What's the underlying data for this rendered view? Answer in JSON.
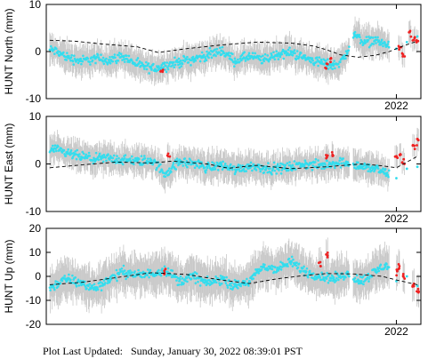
{
  "colors": {
    "series_main": "#33ddee",
    "series_recent": "#ee2222",
    "errorbar": "#c8c8c8",
    "model": "#000000",
    "frame": "#000000"
  },
  "footer": {
    "label": "Plot Last Updated:",
    "value": "Sunday, January 30, 2022 08:39:01 PST"
  },
  "chart_data": [
    {
      "type": "scatter",
      "ylabel": "HUNT North (mm)",
      "ylim": [
        -10,
        10
      ],
      "yticks": [
        "10",
        "0",
        "-10"
      ],
      "xlabel_tick": "2022",
      "xlim": [
        2017.0,
        2022.35
      ],
      "model_trend": [
        [
          2017.05,
          2.4
        ],
        [
          2017.4,
          2.2
        ],
        [
          2017.8,
          1.6
        ],
        [
          2018.3,
          1.0
        ],
        [
          2018.6,
          -0.2
        ],
        [
          2019.0,
          0.6
        ],
        [
          2019.5,
          1.4
        ],
        [
          2020.0,
          2.0
        ],
        [
          2020.5,
          1.8
        ],
        [
          2020.8,
          1.2
        ],
        [
          2021.0,
          0.4
        ],
        [
          2021.2,
          -0.7
        ],
        [
          2021.45,
          -1.2
        ],
        [
          2021.7,
          -0.8
        ],
        [
          2021.9,
          0.0
        ],
        [
          2022.1,
          1.2
        ],
        [
          2022.3,
          2.2
        ]
      ],
      "series": [
        {
          "points": [
            [
              2017.1,
              0.3
            ],
            [
              2017.3,
              -1.2
            ],
            [
              2017.5,
              -2.0
            ],
            [
              2017.7,
              -1.5
            ],
            [
              2017.9,
              -1.8
            ],
            [
              2018.1,
              -1.0
            ],
            [
              2018.3,
              -2.8
            ],
            [
              2018.5,
              -3.6
            ],
            [
              2018.7,
              -3.0
            ],
            [
              2018.9,
              -2.2
            ],
            [
              2019.1,
              -1.6
            ],
            [
              2019.3,
              -0.8
            ],
            [
              2019.5,
              0.2
            ],
            [
              2019.7,
              -2.0
            ],
            [
              2019.9,
              -1.0
            ],
            [
              2020.1,
              -1.8
            ],
            [
              2020.3,
              -0.6
            ],
            [
              2020.5,
              -0.2
            ],
            [
              2020.7,
              -1.4
            ],
            [
              2020.9,
              -2.2
            ],
            [
              2021.1,
              -3.0
            ],
            [
              2021.25,
              -1.5
            ],
            [
              2021.4,
              3.6
            ],
            [
              2021.55,
              2.0
            ],
            [
              2021.7,
              2.4
            ],
            [
              2021.85,
              1.4
            ],
            [
              2022.0,
              0.6
            ],
            [
              2022.15,
              2.0
            ],
            [
              2022.3,
              3.2
            ]
          ]
        },
        {
          "points": [
            [
              2018.65,
              -3.8
            ],
            [
              2021.0,
              -3.2
            ],
            [
              2021.05,
              -1.8
            ],
            [
              2022.05,
              0.8
            ],
            [
              2022.1,
              -0.8
            ],
            [
              2022.2,
              3.8
            ],
            [
              2022.25,
              2.5
            ],
            [
              2022.3,
              2.0
            ]
          ]
        }
      ]
    },
    {
      "type": "scatter",
      "ylabel": "HUNT East (mm)",
      "ylim": [
        -10,
        10
      ],
      "yticks": [
        "10",
        "0",
        "-10"
      ],
      "xlabel_tick": "2022",
      "xlim": [
        2017.0,
        2022.35
      ],
      "model_trend": [
        [
          2017.05,
          -0.8
        ],
        [
          2017.5,
          -0.2
        ],
        [
          2018.0,
          0.4
        ],
        [
          2018.5,
          0.2
        ],
        [
          2018.8,
          0.6
        ],
        [
          2019.3,
          0.0
        ],
        [
          2019.6,
          -0.9
        ],
        [
          2020.0,
          -0.3
        ],
        [
          2020.5,
          -1.0
        ],
        [
          2021.0,
          -0.6
        ],
        [
          2021.5,
          0.0
        ],
        [
          2021.8,
          -0.4
        ],
        [
          2022.0,
          -0.8
        ],
        [
          2022.3,
          1.6
        ]
      ],
      "series": [
        {
          "points": [
            [
              2017.1,
              3.0
            ],
            [
              2017.3,
              2.2
            ],
            [
              2017.5,
              1.5
            ],
            [
              2017.7,
              1.0
            ],
            [
              2017.9,
              1.2
            ],
            [
              2018.1,
              0.8
            ],
            [
              2018.3,
              0.6
            ],
            [
              2018.5,
              0.8
            ],
            [
              2018.7,
              -2.0
            ],
            [
              2018.9,
              0.4
            ],
            [
              2019.1,
              0.2
            ],
            [
              2019.3,
              -0.8
            ],
            [
              2019.5,
              -0.2
            ],
            [
              2019.7,
              -1.2
            ],
            [
              2019.9,
              -0.4
            ],
            [
              2020.1,
              -0.8
            ],
            [
              2020.3,
              -1.0
            ],
            [
              2020.5,
              -0.6
            ],
            [
              2020.7,
              0.0
            ],
            [
              2020.9,
              -0.4
            ],
            [
              2021.1,
              0.2
            ],
            [
              2021.3,
              0.4
            ],
            [
              2021.5,
              -0.6
            ],
            [
              2021.7,
              -1.0
            ],
            [
              2021.85,
              -2.0
            ],
            [
              2022.0,
              -3.0
            ],
            [
              2022.15,
              -1.0
            ],
            [
              2022.3,
              -0.6
            ]
          ]
        },
        {
          "points": [
            [
              2018.75,
              1.8
            ],
            [
              2021.0,
              1.6
            ],
            [
              2021.1,
              2.0
            ],
            [
              2022.0,
              1.2
            ],
            [
              2022.05,
              2.0
            ],
            [
              2022.1,
              0.4
            ],
            [
              2022.25,
              3.6
            ],
            [
              2022.3,
              4.6
            ]
          ]
        }
      ]
    },
    {
      "type": "scatter",
      "ylabel": "HUNT Up (mm)",
      "ylim": [
        -20,
        20
      ],
      "yticks": [
        "20",
        "10",
        "0",
        "-10",
        "-20"
      ],
      "xlabel_tick": "2022",
      "xlim": [
        2017.0,
        2022.35
      ],
      "model_trend": [
        [
          2017.05,
          -3.5
        ],
        [
          2017.5,
          -2.5
        ],
        [
          2018.0,
          -0.5
        ],
        [
          2018.5,
          1.5
        ],
        [
          2019.0,
          0.8
        ],
        [
          2019.5,
          -1.5
        ],
        [
          2019.9,
          -3.0
        ],
        [
          2020.3,
          -1.0
        ],
        [
          2020.7,
          0.4
        ],
        [
          2021.0,
          1.2
        ],
        [
          2021.4,
          1.0
        ],
        [
          2021.8,
          0.0
        ],
        [
          2022.0,
          -1.5
        ],
        [
          2022.3,
          -3.5
        ]
      ],
      "series": [
        {
          "points": [
            [
              2017.1,
              -4.0
            ],
            [
              2017.3,
              -1.0
            ],
            [
              2017.5,
              -3.0
            ],
            [
              2017.7,
              -5.0
            ],
            [
              2017.9,
              -1.0
            ],
            [
              2018.1,
              2.0
            ],
            [
              2018.3,
              0.5
            ],
            [
              2018.5,
              1.0
            ],
            [
              2018.7,
              3.0
            ],
            [
              2018.9,
              -2.0
            ],
            [
              2019.1,
              0.0
            ],
            [
              2019.3,
              -3.0
            ],
            [
              2019.5,
              -1.0
            ],
            [
              2019.7,
              -4.0
            ],
            [
              2019.9,
              -2.0
            ],
            [
              2020.1,
              4.0
            ],
            [
              2020.3,
              3.0
            ],
            [
              2020.5,
              6.0
            ],
            [
              2020.7,
              2.0
            ],
            [
              2020.9,
              0.0
            ],
            [
              2021.1,
              -1.0
            ],
            [
              2021.3,
              1.0
            ],
            [
              2021.5,
              -2.0
            ],
            [
              2021.7,
              2.0
            ],
            [
              2021.85,
              5.0
            ],
            [
              2022.0,
              -2.0
            ],
            [
              2022.15,
              0.0
            ],
            [
              2022.3,
              -4.0
            ]
          ]
        },
        {
          "points": [
            [
              2018.7,
              2.0
            ],
            [
              2020.9,
              5.0
            ],
            [
              2021.0,
              9.0
            ],
            [
              2022.0,
              2.0
            ],
            [
              2022.05,
              4.0
            ],
            [
              2022.1,
              0.0
            ],
            [
              2022.25,
              -3.0
            ],
            [
              2022.3,
              -6.0
            ]
          ]
        }
      ]
    }
  ]
}
